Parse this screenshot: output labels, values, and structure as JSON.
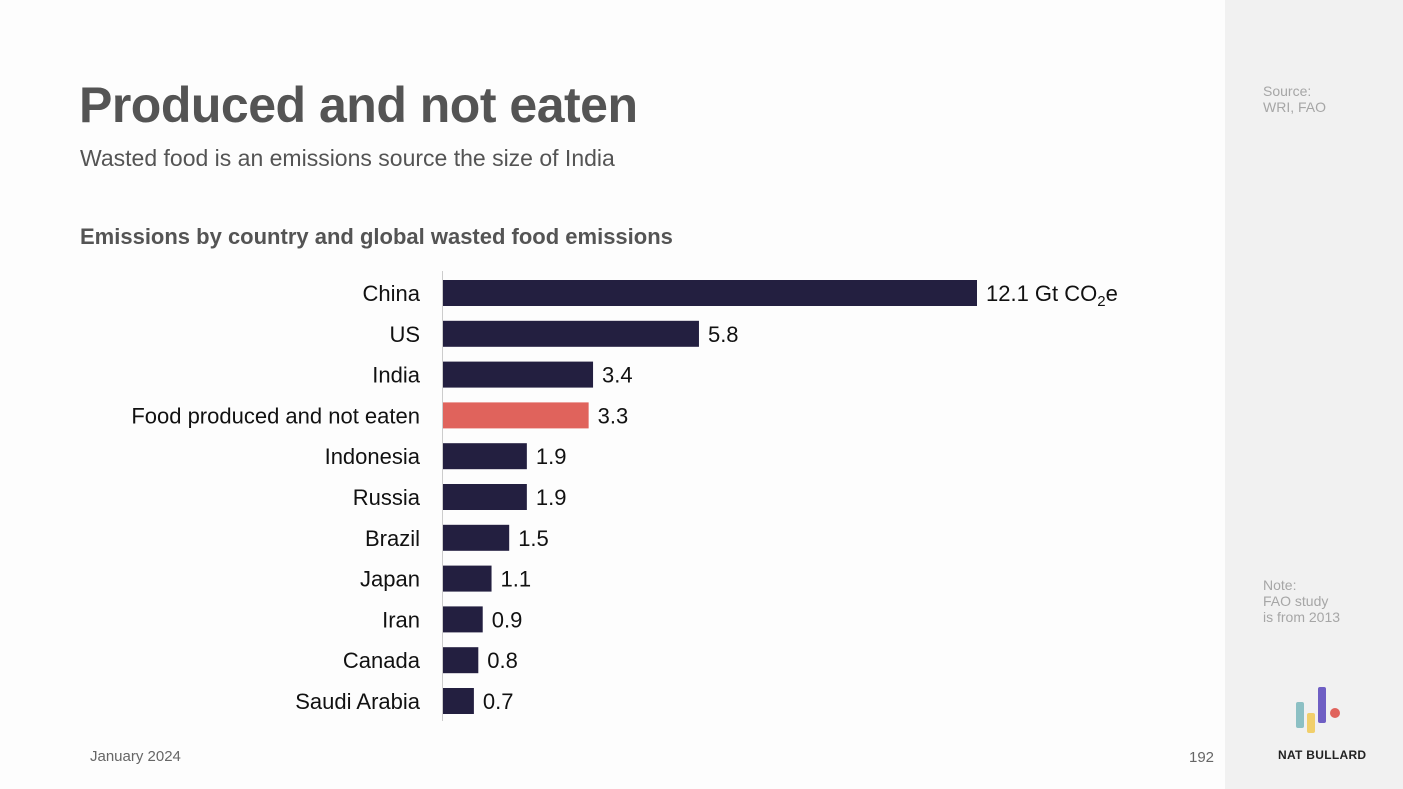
{
  "header": {
    "title": "Produced and not eaten",
    "subtitle": "Wasted food is an emissions source the size of India"
  },
  "chart_data": {
    "type": "bar",
    "orientation": "horizontal",
    "title": "Emissions by country and global wasted food emissions",
    "categories": [
      "China",
      "US",
      "India",
      "Food produced and not eaten",
      "Indonesia",
      "Russia",
      "Brazil",
      "Japan",
      "Iran",
      "Canada",
      "Saudi Arabia"
    ],
    "values": [
      12.1,
      5.8,
      3.4,
      3.3,
      1.9,
      1.9,
      1.5,
      1.1,
      0.9,
      0.8,
      0.7
    ],
    "value_labels": [
      "12.1 Gt CO",
      "5.8",
      "3.4",
      "3.3",
      "1.9",
      "1.9",
      "1.5",
      "1.1",
      "0.9",
      "0.8",
      "0.7"
    ],
    "first_label_subscript": "2",
    "first_label_suffix": "e",
    "unit": "Gt CO2e",
    "highlight_index": 3,
    "colors": {
      "bar": "#231f40",
      "highlight": "#e0635c",
      "axis": "#cccccc",
      "text": "#111111"
    },
    "xlim": [
      0,
      12.1
    ],
    "xlabel": "",
    "ylabel": ""
  },
  "sidebar": {
    "source_label": "Source:",
    "source_text": "WRI, FAO",
    "note_label": "Note:",
    "note_line1": "FAO study",
    "note_line2": "is from 2013",
    "brand": "NAT BULLARD",
    "logo_colors": [
      "#8cc0c4",
      "#f1cf6b",
      "#6f5fc4",
      "#e0635c"
    ]
  },
  "footer": {
    "date": "January 2024",
    "page": "192"
  }
}
